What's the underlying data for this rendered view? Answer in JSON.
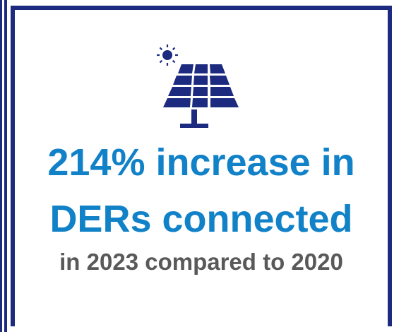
{
  "headline": {
    "line1": "214% increase in",
    "line2": "DERs connected"
  },
  "subline": "in 2023 compared to 2020",
  "icons": {
    "sun": "sun-icon",
    "solar_panel": "solar-panel-icon"
  },
  "colors": {
    "frame": "#1c2a80",
    "icon": "#1c2a80",
    "headline": "#1181c8",
    "subline": "#595959",
    "background": "#ffffff"
  }
}
